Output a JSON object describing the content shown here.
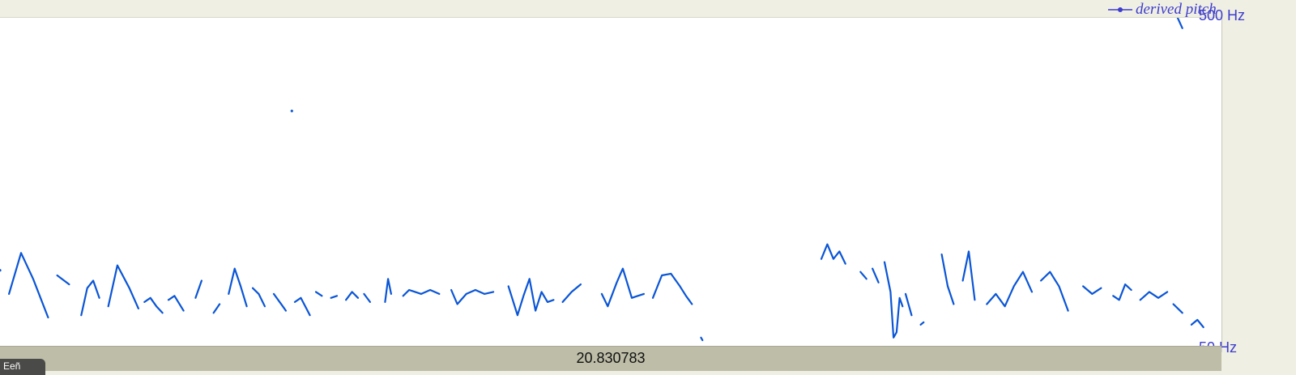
{
  "legend": {
    "label": "derived pitch"
  },
  "axis": {
    "max_label": "500 Hz",
    "min_label": "50 Hz"
  },
  "status": {
    "time": "20.830783"
  },
  "tab": {
    "label": "Eeñ"
  },
  "colors": {
    "pitch": "#0a55d6",
    "legend_text": "#3d3dcc",
    "axis_text": "#3d3dcc",
    "bar": "#bebda8",
    "plot_bg": "#ffffff",
    "chrome": "#f0efe4"
  },
  "chart_data": {
    "type": "line",
    "title": "",
    "xlabel": "",
    "ylabel": "",
    "ylim": [
      50,
      500
    ],
    "series": [
      {
        "name": "derived pitch",
        "segments": [
          [
            [
              0.3,
              72
            ],
            [
              0.7,
              96
            ],
            [
              1.1,
              80
            ],
            [
              1.6,
              61
            ]
          ],
          [
            [
              1.9,
              82
            ],
            [
              2.3,
              77
            ]
          ],
          [
            [
              2.7,
              62
            ],
            [
              2.9,
              75
            ],
            [
              3.1,
              79
            ],
            [
              3.3,
              70
            ]
          ],
          [
            [
              3.6,
              66
            ],
            [
              3.9,
              88
            ],
            [
              4.3,
              75
            ],
            [
              4.6,
              65
            ]
          ],
          [
            [
              4.8,
              68
            ],
            [
              5.0,
              70
            ],
            [
              5.2,
              66
            ],
            [
              5.4,
              63
            ]
          ],
          [
            [
              5.6,
              69
            ],
            [
              5.8,
              71
            ],
            [
              6.1,
              64
            ]
          ],
          [
            [
              6.5,
              70
            ],
            [
              6.7,
              79
            ]
          ],
          [
            [
              7.1,
              63
            ],
            [
              7.3,
              67
            ]
          ],
          [
            [
              7.6,
              72
            ],
            [
              7.8,
              86
            ],
            [
              8.0,
              76
            ],
            [
              8.2,
              66
            ]
          ],
          [
            [
              8.4,
              75
            ],
            [
              8.6,
              72
            ],
            [
              8.8,
              66
            ]
          ],
          [
            [
              9.1,
              72
            ],
            [
              9.4,
              66
            ],
            [
              9.5,
              64
            ]
          ],
          [
            [
              9.8,
              68
            ],
            [
              10.0,
              70
            ],
            [
              10.3,
              62
            ]
          ],
          [
            [
              10.5,
              73
            ],
            [
              10.7,
              71
            ]
          ],
          [
            [
              11.0,
              70
            ],
            [
              11.2,
              71
            ]
          ],
          [
            [
              11.5,
              69
            ],
            [
              11.7,
              73
            ],
            [
              11.9,
              70
            ]
          ],
          [
            [
              12.1,
              72
            ],
            [
              12.3,
              68
            ]
          ],
          [
            [
              12.8,
              68
            ],
            [
              12.9,
              80
            ],
            [
              13.0,
              72
            ]
          ],
          [
            [
              13.4,
              71
            ],
            [
              13.6,
              74
            ],
            [
              14.0,
              72
            ],
            [
              14.3,
              74
            ],
            [
              14.6,
              72
            ]
          ],
          [
            [
              15.0,
              74
            ],
            [
              15.2,
              67
            ],
            [
              15.5,
              72
            ],
            [
              15.8,
              74
            ],
            [
              16.1,
              72
            ],
            [
              16.4,
              73
            ]
          ],
          [
            [
              16.9,
              76
            ],
            [
              17.2,
              62
            ],
            [
              17.4,
              71
            ],
            [
              17.6,
              80
            ],
            [
              17.8,
              64
            ],
            [
              18.0,
              73
            ],
            [
              18.2,
              68
            ],
            [
              18.4,
              69
            ]
          ],
          [
            [
              18.7,
              68
            ],
            [
              19.0,
              73
            ],
            [
              19.3,
              77
            ]
          ],
          [
            [
              20.0,
              72
            ],
            [
              20.2,
              66
            ],
            [
              20.5,
              78
            ],
            [
              20.7,
              86
            ],
            [
              20.9,
              75
            ],
            [
              21.0,
              70
            ],
            [
              21.2,
              71
            ],
            [
              21.4,
              72
            ]
          ],
          [
            [
              21.7,
              70
            ],
            [
              22.0,
              82
            ],
            [
              22.3,
              83
            ],
            [
              22.6,
              76
            ],
            [
              22.8,
              71
            ],
            [
              23.0,
              67
            ]
          ],
          [
            [
              23.3,
              53
            ],
            [
              23.35,
              52
            ]
          ],
          [
            [
              27.3,
              92
            ],
            [
              27.5,
              102
            ],
            [
              27.7,
              92
            ],
            [
              27.9,
              97
            ],
            [
              28.1,
              89
            ]
          ],
          [
            [
              28.6,
              84
            ],
            [
              28.8,
              80
            ]
          ],
          [
            [
              29.0,
              86
            ],
            [
              29.2,
              78
            ]
          ],
          [
            [
              29.4,
              90
            ],
            [
              29.6,
              73
            ],
            [
              29.7,
              53
            ],
            [
              29.8,
              55
            ],
            [
              29.9,
              70
            ],
            [
              30.0,
              66
            ]
          ],
          [
            [
              30.1,
              72
            ],
            [
              30.3,
              62
            ]
          ],
          [
            [
              30.6,
              58
            ],
            [
              30.7,
              59
            ]
          ],
          [
            [
              31.3,
              95
            ],
            [
              31.5,
              76
            ],
            [
              31.7,
              67
            ]
          ],
          [
            [
              32.0,
              79
            ],
            [
              32.2,
              97
            ],
            [
              32.4,
              69
            ]
          ],
          [
            [
              32.8,
              67
            ],
            [
              33.1,
              72
            ],
            [
              33.4,
              66
            ],
            [
              33.7,
              76
            ],
            [
              34.0,
              84
            ],
            [
              34.3,
              73
            ]
          ],
          [
            [
              34.6,
              79
            ],
            [
              34.9,
              84
            ],
            [
              35.2,
              76
            ],
            [
              35.5,
              64
            ]
          ],
          [
            [
              36.0,
              76
            ],
            [
              36.3,
              72
            ],
            [
              36.6,
              75
            ]
          ],
          [
            [
              37.0,
              71
            ],
            [
              37.2,
              69
            ],
            [
              37.4,
              77
            ],
            [
              37.6,
              74
            ]
          ],
          [
            [
              37.9,
              69
            ],
            [
              38.2,
              73
            ],
            [
              38.5,
              70
            ],
            [
              38.8,
              73
            ]
          ],
          [
            [
              39.0,
              67
            ],
            [
              39.3,
              63
            ]
          ],
          [
            [
              39.6,
              58
            ],
            [
              39.8,
              60
            ],
            [
              40.0,
              57
            ]
          ],
          [
            [
              0.0,
              85
            ]
          ],
          [
            [
              9.7,
              260
            ]
          ],
          [
            [
              39.1,
              510
            ],
            [
              39.3,
              465
            ]
          ]
        ]
      }
    ]
  }
}
